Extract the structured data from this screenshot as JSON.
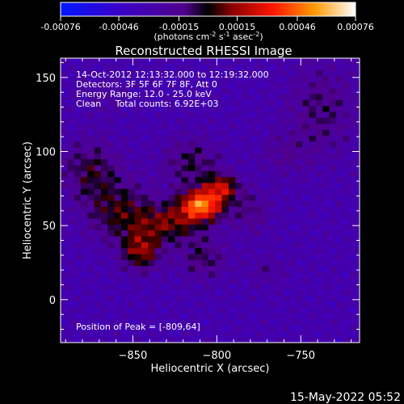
{
  "chart_data": {
    "type": "heatmap",
    "title": "Reconstructed RHESSI Image",
    "xlabel": "Heliocentric X (arcsec)",
    "ylabel": "Heliocentric Y (arcsec)",
    "xlim": [
      -893,
      -715
    ],
    "ylim": [
      -29,
      163
    ],
    "x_ticks": [
      -850,
      -800,
      -750
    ],
    "y_ticks": [
      0,
      50,
      100,
      150
    ],
    "colorbar": {
      "min": -0.00076,
      "max": 0.00076,
      "ticks": [
        "-0.00076",
        "-0.00046",
        "-0.00015",
        "0.00015",
        "0.00046",
        "0.00076"
      ],
      "tick_values": [
        -0.00076,
        -0.00046,
        -0.00015,
        0.00015,
        0.00046,
        0.00076
      ],
      "units": "(photons cm",
      "units_exp1": "-2",
      "units_mid": " s",
      "units_exp2": "-1",
      "units_end": " asec",
      "units_exp3": "-2",
      "units_tail": ")"
    },
    "info_lines": [
      "14-Oct-2012 12:13:32.000 to 12:19:32.000",
      "Detectors: 3F 5F 6F 7F 8F, Att 0",
      "Energy Range: 12.0 - 25.0 keV",
      "Clean     Total counts: 6.92E+03"
    ],
    "peak_label": "Position of Peak = [-809,64]",
    "peak": {
      "x": -809,
      "y": 64,
      "value": 0.00076
    },
    "sources": [
      {
        "x": -809,
        "y": 64,
        "sx": 9,
        "sy": 7,
        "amp": 0.00076
      },
      {
        "x": -797,
        "y": 76,
        "sx": 7,
        "sy": 6,
        "amp": 0.00046
      },
      {
        "x": -828,
        "y": 52,
        "sx": 14,
        "sy": 9,
        "amp": 0.00036
      },
      {
        "x": -845,
        "y": 33,
        "sx": 8,
        "sy": 9,
        "amp": 0.00042
      },
      {
        "x": -858,
        "y": 60,
        "sx": 14,
        "sy": 14,
        "amp": 0.0003
      },
      {
        "x": -875,
        "y": 88,
        "sx": 12,
        "sy": 14,
        "amp": 0.00026
      },
      {
        "x": -815,
        "y": 92,
        "sx": 12,
        "sy": 12,
        "amp": 0.00024
      },
      {
        "x": -780,
        "y": 60,
        "sx": 8,
        "sy": 10,
        "amp": 0.00018
      },
      {
        "x": -808,
        "y": 28,
        "sx": 10,
        "sy": 10,
        "amp": 0.00022
      },
      {
        "x": -738,
        "y": 128,
        "sx": 14,
        "sy": 22,
        "amp": 0.0002
      },
      {
        "x": -760,
        "y": 98,
        "sx": 10,
        "sy": 10,
        "amp": 0.00012
      },
      {
        "x": -770,
        "y": 20,
        "sx": 8,
        "sy": 8,
        "amp": 0.0001
      },
      {
        "x": -868,
        "y": 138,
        "sx": 10,
        "sy": 8,
        "amp": 0.0001
      }
    ],
    "grid": false
  },
  "timestamp": "15-May-2022 05:52"
}
